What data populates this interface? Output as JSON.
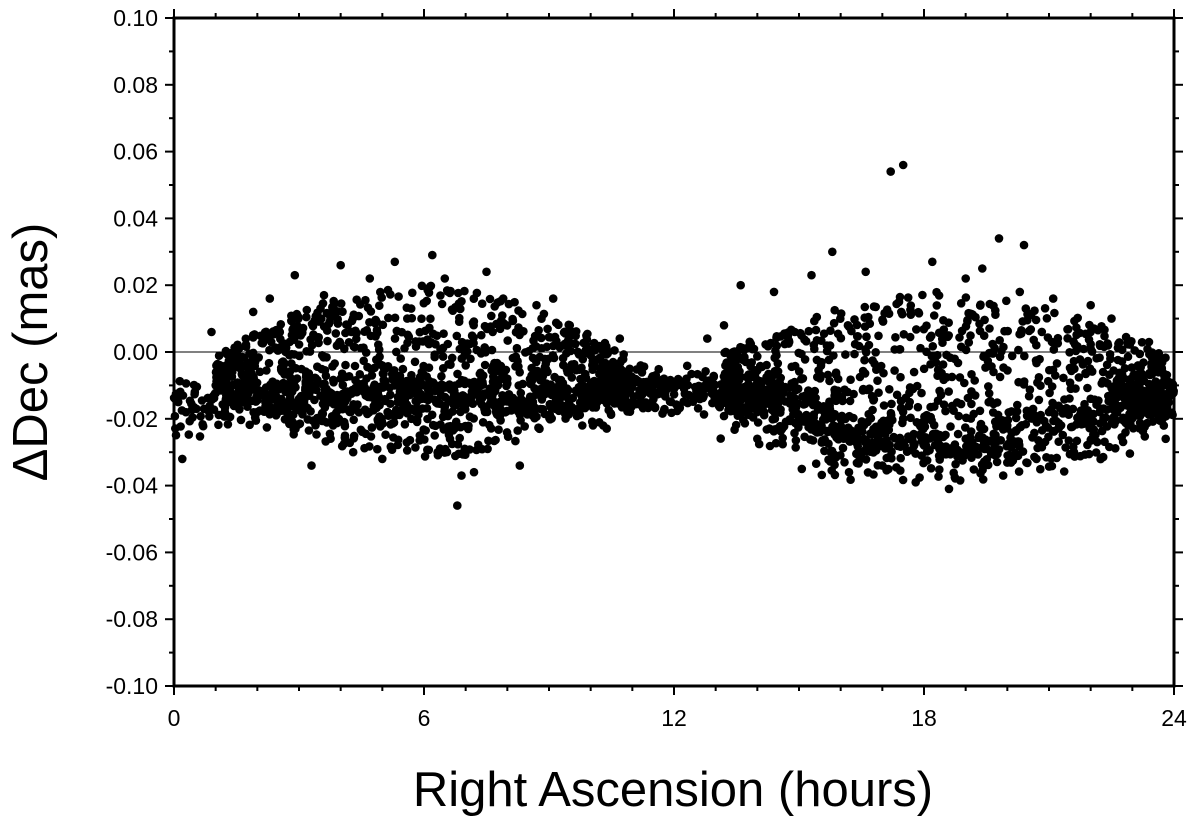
{
  "chart_data": {
    "type": "scatter",
    "xlabel": "Right Ascension (hours)",
    "ylabel": "ΔDec (mas)",
    "xlim": [
      0,
      24
    ],
    "ylim": [
      -0.1,
      0.1
    ],
    "xticks": [
      "0",
      "6",
      "12",
      "18",
      "24"
    ],
    "yticks": [
      "0.10",
      "0.08",
      "0.06",
      "0.04",
      "0.02",
      "0.00",
      "-0.02",
      "-0.04",
      "-0.06",
      "-0.08",
      "-0.10"
    ],
    "grid": false,
    "reference_line_y": 0.0,
    "marker_color": "#000000",
    "points": [
      [
        0.2,
        -0.032
      ],
      [
        6.8,
        -0.046
      ],
      [
        17.2,
        0.054
      ],
      [
        17.5,
        0.056
      ],
      [
        19.8,
        0.034
      ],
      [
        20.4,
        0.032
      ],
      [
        0.5,
        -0.012
      ],
      [
        0.9,
        0.006
      ],
      [
        1.4,
        -0.006
      ],
      [
        1.9,
        0.012
      ],
      [
        2.3,
        0.016
      ],
      [
        2.9,
        0.023
      ],
      [
        3.3,
        -0.034
      ],
      [
        3.6,
        0.017
      ],
      [
        4.0,
        0.026
      ],
      [
        4.3,
        -0.03
      ],
      [
        4.7,
        0.022
      ],
      [
        5.0,
        -0.032
      ],
      [
        5.3,
        0.027
      ],
      [
        5.6,
        0.01
      ],
      [
        5.9,
        -0.025
      ],
      [
        6.2,
        0.029
      ],
      [
        6.5,
        0.022
      ],
      [
        6.9,
        -0.037
      ],
      [
        7.2,
        -0.036
      ],
      [
        7.5,
        0.024
      ],
      [
        7.9,
        0.016
      ],
      [
        8.3,
        -0.034
      ],
      [
        8.7,
        0.014
      ],
      [
        9.1,
        0.016
      ],
      [
        9.5,
        0.008
      ],
      [
        9.8,
        -0.022
      ],
      [
        10.3,
        -0.022
      ],
      [
        10.7,
        0.004
      ],
      [
        11.2,
        -0.004
      ],
      [
        11.7,
        -0.012
      ],
      [
        12.3,
        -0.008
      ],
      [
        12.8,
        0.004
      ],
      [
        13.2,
        0.008
      ],
      [
        13.6,
        0.02
      ],
      [
        14.0,
        -0.026
      ],
      [
        14.4,
        0.018
      ],
      [
        14.9,
        0.006
      ],
      [
        15.3,
        0.023
      ],
      [
        15.8,
        0.03
      ],
      [
        16.2,
        -0.036
      ],
      [
        16.6,
        0.024
      ],
      [
        17.0,
        -0.034
      ],
      [
        17.4,
        0.015
      ],
      [
        17.8,
        -0.039
      ],
      [
        18.2,
        0.027
      ],
      [
        18.6,
        -0.041
      ],
      [
        19.0,
        0.022
      ],
      [
        19.4,
        0.025
      ],
      [
        19.9,
        -0.037
      ],
      [
        20.3,
        0.018
      ],
      [
        20.7,
        -0.032
      ],
      [
        21.1,
        0.016
      ],
      [
        21.6,
        -0.03
      ],
      [
        22.0,
        0.014
      ],
      [
        22.5,
        0.01
      ],
      [
        22.9,
        -0.022
      ],
      [
        23.4,
        0.003
      ],
      [
        23.8,
        -0.026
      ],
      [
        0.1,
        -0.015
      ],
      [
        1.0,
        -0.01
      ],
      [
        2.0,
        -0.018
      ],
      [
        3.0,
        -0.014
      ],
      [
        4.0,
        -0.008
      ],
      [
        5.0,
        -0.004
      ],
      [
        6.0,
        -0.01
      ],
      [
        7.0,
        -0.004
      ],
      [
        8.0,
        -0.008
      ],
      [
        9.0,
        -0.012
      ],
      [
        10.0,
        -0.014
      ],
      [
        11.0,
        -0.01
      ],
      [
        12.0,
        -0.011
      ],
      [
        13.0,
        -0.014
      ],
      [
        14.0,
        -0.018
      ],
      [
        15.0,
        -0.02
      ],
      [
        16.0,
        -0.022
      ],
      [
        17.0,
        -0.024
      ],
      [
        18.0,
        -0.028
      ],
      [
        19.0,
        -0.026
      ],
      [
        20.0,
        -0.022
      ],
      [
        21.0,
        -0.018
      ],
      [
        22.0,
        -0.014
      ],
      [
        23.0,
        -0.013
      ]
    ],
    "bands": [
      {
        "x": [
          0,
          11
        ],
        "center": [
          -0.016,
          -0.012
        ],
        "amplitude": 0.0,
        "count": 520,
        "spread": 0.006,
        "note_shape": "flat"
      },
      {
        "x": [
          1.0,
          10.8
        ],
        "center": [
          -0.006,
          -0.006
        ],
        "amplitude": 0.02,
        "count": 900,
        "spread": 0.018,
        "note_shape": "lobe"
      },
      {
        "x": [
          10.5,
          14.5
        ],
        "center": [
          -0.011,
          -0.012
        ],
        "amplitude": 0.0,
        "count": 260,
        "spread": 0.005,
        "note_shape": "flat"
      },
      {
        "x": [
          13.0,
          24.0
        ],
        "center": [
          -0.014,
          -0.014
        ],
        "amplitude": 0.018,
        "count": 520,
        "spread": 0.006,
        "note_shape": "lower-arc"
      },
      {
        "x": [
          13.2,
          23.8
        ],
        "center": [
          -0.006,
          -0.006
        ],
        "amplitude": 0.018,
        "count": 700,
        "spread": 0.017,
        "note_shape": "lobe"
      },
      {
        "x": [
          22.5,
          24.0
        ],
        "center": [
          -0.014,
          -0.013
        ],
        "amplitude": 0.0,
        "count": 160,
        "spread": 0.005,
        "note_shape": "flat"
      }
    ]
  }
}
